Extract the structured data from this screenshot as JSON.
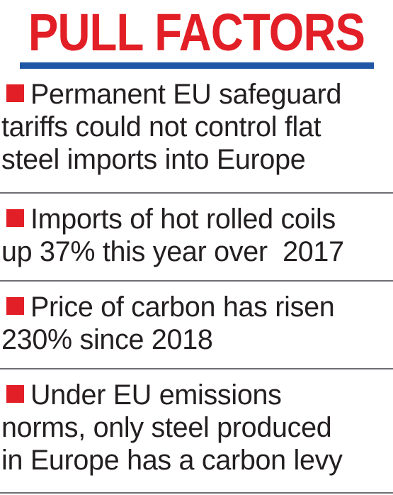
{
  "title": "PULL FACTORS",
  "colors": {
    "title_red": "#e21f26",
    "rule_blue": "#1f57a6",
    "bullet_red": "#e21f26",
    "text": "#231f20",
    "divider_gray": "#6d6e71"
  },
  "items": [
    {
      "lines": [
        "Permanent EU safeguard",
        "tariffs could not control flat",
        "steel imports into Europe"
      ]
    },
    {
      "lines": [
        "Imports of hot rolled coils",
        "up 37% this year over  2017"
      ]
    },
    {
      "lines": [
        "Price of carbon has risen",
        "230% since 2018"
      ]
    },
    {
      "lines": [
        "Under EU emissions",
        "norms, only steel produced",
        "in Europe has a carbon levy"
      ]
    }
  ]
}
